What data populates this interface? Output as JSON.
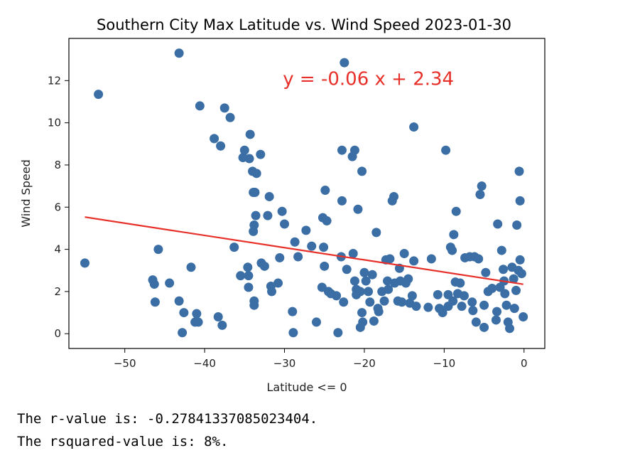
{
  "output": {
    "r_value_line": "The r-value is: -0.27841337085023404.",
    "rsquared_line": "The rsquared-value is: 8%."
  },
  "colors": {
    "points": "#3a6ea5",
    "regression": "#e8302a",
    "axes": "#000000"
  },
  "chart_data": {
    "type": "scatter",
    "title": "Southern City Max Latitude vs. Wind Speed 2023-01-30",
    "xlabel": "Latitude <= 0",
    "ylabel": "Wind Speed",
    "xlim": [
      -57,
      2.6
    ],
    "ylim": [
      -0.7,
      14.0
    ],
    "xticks": [
      -50,
      -40,
      -30,
      -20,
      -10,
      0
    ],
    "xtick_labels": [
      "−50",
      "−40",
      "−30",
      "−20",
      "−10",
      "0"
    ],
    "yticks": [
      0,
      2,
      4,
      6,
      8,
      10,
      12
    ],
    "ytick_labels": [
      "0",
      "2",
      "4",
      "6",
      "8",
      "10",
      "12"
    ],
    "grid": false,
    "annotation": {
      "text": "y = -0.06 x + 2.34",
      "x": -30.2,
      "y": 12.1
    },
    "regression": {
      "slope": -0.058,
      "intercept": 2.34,
      "x_range": [
        -55,
        -0.1
      ]
    },
    "points": [
      [
        -55,
        3.35
      ],
      [
        -53.3,
        11.35
      ],
      [
        -46.5,
        2.55
      ],
      [
        -46.3,
        2.35
      ],
      [
        -46.2,
        1.5
      ],
      [
        -45.8,
        4.0
      ],
      [
        -44.4,
        2.4
      ],
      [
        -43.2,
        13.3
      ],
      [
        -43.2,
        1.55
      ],
      [
        -42.8,
        0.05
      ],
      [
        -42.6,
        1.0
      ],
      [
        -41.7,
        3.15
      ],
      [
        -41.2,
        0.55
      ],
      [
        -41.0,
        0.95
      ],
      [
        -40.8,
        0.55
      ],
      [
        -40.6,
        10.8
      ],
      [
        -38.8,
        9.25
      ],
      [
        -38.3,
        0.8
      ],
      [
        -38.0,
        8.9
      ],
      [
        -37.8,
        0.4
      ],
      [
        -37.5,
        10.7
      ],
      [
        -36.8,
        10.25
      ],
      [
        -36.3,
        4.1
      ],
      [
        -35.5,
        2.75
      ],
      [
        -35.2,
        8.35
      ],
      [
        -35.0,
        8.7
      ],
      [
        -34.6,
        3.15
      ],
      [
        -34.5,
        2.75
      ],
      [
        -34.5,
        2.2
      ],
      [
        -34.4,
        8.3
      ],
      [
        -34.3,
        9.45
      ],
      [
        -34.0,
        7.7
      ],
      [
        -33.9,
        6.7
      ],
      [
        -33.9,
        4.85
      ],
      [
        -33.8,
        5.15
      ],
      [
        -33.8,
        1.35
      ],
      [
        -33.8,
        1.55
      ],
      [
        -33.7,
        6.7
      ],
      [
        -33.6,
        5.6
      ],
      [
        -33.5,
        7.6
      ],
      [
        -33.0,
        8.5
      ],
      [
        -32.9,
        3.35
      ],
      [
        -32.5,
        3.2
      ],
      [
        -32.1,
        5.6
      ],
      [
        -31.9,
        6.5
      ],
      [
        -31.7,
        2.25
      ],
      [
        -31.6,
        2.0
      ],
      [
        -30.8,
        2.4
      ],
      [
        -30.6,
        3.6
      ],
      [
        -30.3,
        5.8
      ],
      [
        -30.0,
        5.2
      ],
      [
        -29.0,
        1.05
      ],
      [
        -28.9,
        0.05
      ],
      [
        -28.7,
        4.35
      ],
      [
        -28.3,
        3.65
      ],
      [
        -27.3,
        4.9
      ],
      [
        -26.6,
        4.15
      ],
      [
        -26.0,
        0.55
      ],
      [
        -25.3,
        2.2
      ],
      [
        -25.2,
        5.5
      ],
      [
        -25.1,
        4.1
      ],
      [
        -25.0,
        3.2
      ],
      [
        -24.9,
        6.8
      ],
      [
        -24.7,
        5.35
      ],
      [
        -24.5,
        2.0
      ],
      [
        -24.2,
        1.9
      ],
      [
        -23.5,
        1.8
      ],
      [
        -23.3,
        0.05
      ],
      [
        -22.9,
        3.65
      ],
      [
        -22.8,
        6.3
      ],
      [
        -22.8,
        8.7
      ],
      [
        -22.6,
        1.5
      ],
      [
        -22.5,
        12.85
      ],
      [
        -22.2,
        3.05
      ],
      [
        -21.5,
        8.4
      ],
      [
        -21.4,
        3.8
      ],
      [
        -21.2,
        8.7
      ],
      [
        -21.2,
        2.5
      ],
      [
        -21.0,
        2.1
      ],
      [
        -21.0,
        1.85
      ],
      [
        -20.8,
        5.9
      ],
      [
        -20.5,
        2.0
      ],
      [
        -20.5,
        0.3
      ],
      [
        -20.3,
        7.7
      ],
      [
        -20.3,
        1.0
      ],
      [
        -20.2,
        0.55
      ],
      [
        -20.0,
        2.9
      ],
      [
        -19.8,
        2.5
      ],
      [
        -19.5,
        2.0
      ],
      [
        -19.3,
        1.5
      ],
      [
        -19.0,
        2.8
      ],
      [
        -18.8,
        0.6
      ],
      [
        -18.5,
        4.8
      ],
      [
        -18.3,
        1.2
      ],
      [
        -18.2,
        1.05
      ],
      [
        -17.8,
        2.0
      ],
      [
        -17.5,
        1.55
      ],
      [
        -17.3,
        3.5
      ],
      [
        -17.1,
        2.5
      ],
      [
        -17.0,
        2.1
      ],
      [
        -16.8,
        3.55
      ],
      [
        -16.5,
        6.3
      ],
      [
        -16.3,
        6.5
      ],
      [
        -16.2,
        2.4
      ],
      [
        -15.8,
        1.55
      ],
      [
        -15.6,
        3.1
      ],
      [
        -15.5,
        2.5
      ],
      [
        -15.3,
        1.5
      ],
      [
        -15.0,
        3.8
      ],
      [
        -14.8,
        2.4
      ],
      [
        -14.5,
        2.6
      ],
      [
        -14.3,
        1.45
      ],
      [
        -14.0,
        1.8
      ],
      [
        -13.8,
        9.8
      ],
      [
        -13.8,
        3.45
      ],
      [
        -13.5,
        1.3
      ],
      [
        -12.0,
        1.25
      ],
      [
        -11.6,
        3.55
      ],
      [
        -10.8,
        1.85
      ],
      [
        -10.6,
        1.2
      ],
      [
        -10.2,
        1.0
      ],
      [
        -9.8,
        8.7
      ],
      [
        -9.5,
        1.85
      ],
      [
        -9.5,
        1.3
      ],
      [
        -9.2,
        4.1
      ],
      [
        -9.0,
        3.95
      ],
      [
        -8.9,
        1.55
      ],
      [
        -8.8,
        4.7
      ],
      [
        -8.6,
        2.45
      ],
      [
        -8.5,
        5.8
      ],
      [
        -8.3,
        1.9
      ],
      [
        -8.0,
        2.4
      ],
      [
        -7.8,
        1.3
      ],
      [
        -7.5,
        1.8
      ],
      [
        -7.4,
        3.6
      ],
      [
        -6.8,
        3.65
      ],
      [
        -6.5,
        1.5
      ],
      [
        -6.4,
        1.1
      ],
      [
        -6.2,
        3.65
      ],
      [
        -6.0,
        0.55
      ],
      [
        -5.7,
        3.55
      ],
      [
        -5.5,
        6.6
      ],
      [
        -5.3,
        7.0
      ],
      [
        -5.0,
        1.35
      ],
      [
        -5.0,
        0.3
      ],
      [
        -4.8,
        2.9
      ],
      [
        -4.5,
        2.0
      ],
      [
        -4.0,
        2.15
      ],
      [
        -3.5,
        0.65
      ],
      [
        -3.4,
        1.05
      ],
      [
        -3.3,
        5.2
      ],
      [
        -3.0,
        2.2
      ],
      [
        -2.8,
        3.95
      ],
      [
        -2.6,
        3.05
      ],
      [
        -2.5,
        2.5
      ],
      [
        -2.4,
        1.9
      ],
      [
        -2.2,
        1.35
      ],
      [
        -2.0,
        0.55
      ],
      [
        -1.8,
        0.25
      ],
      [
        -1.5,
        3.15
      ],
      [
        -1.3,
        2.6
      ],
      [
        -1.2,
        1.2
      ],
      [
        -1.0,
        2.05
      ],
      [
        -0.9,
        5.15
      ],
      [
        -0.7,
        3.0
      ],
      [
        -0.6,
        7.7
      ],
      [
        -0.5,
        3.5
      ],
      [
        -0.5,
        6.3
      ],
      [
        -0.3,
        2.85
      ],
      [
        -0.1,
        0.8
      ]
    ]
  }
}
